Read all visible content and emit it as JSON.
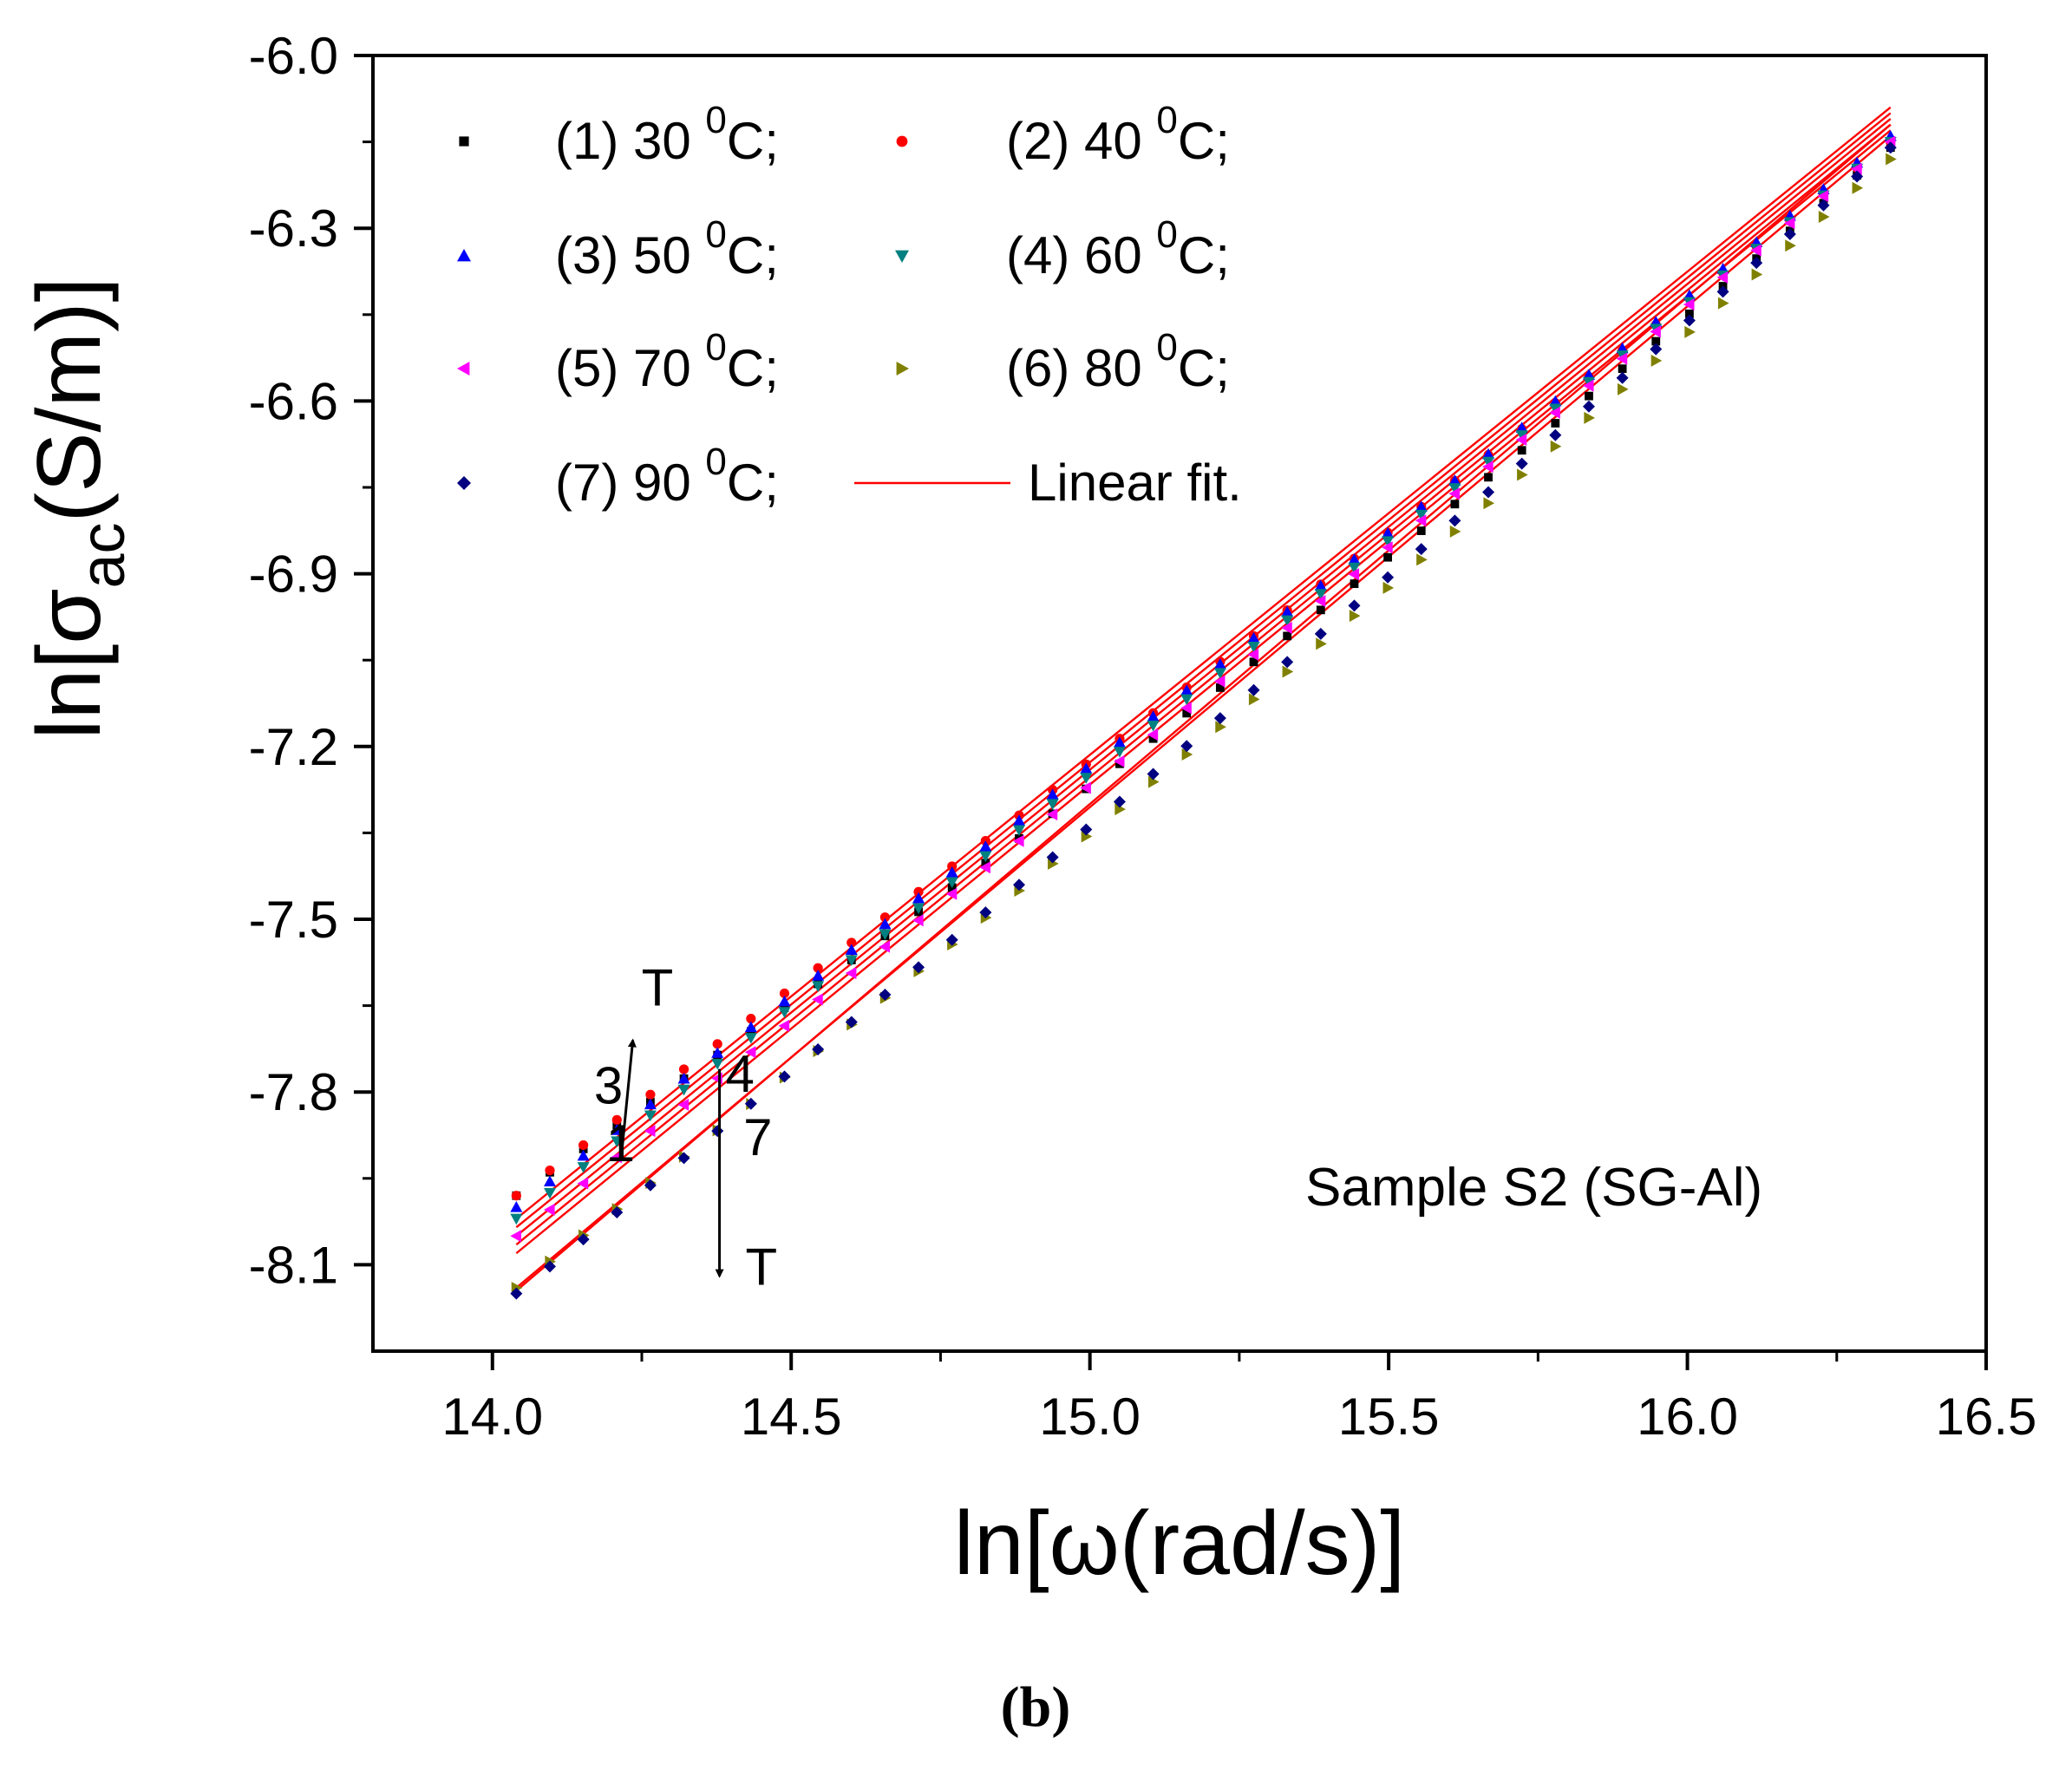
{
  "chart_data": {
    "type": "scatter",
    "panel_label": "(b)",
    "xlabel": "ln[ω(rad/s)]",
    "ylabel": {
      "prefix": "ln[σ",
      "subscript": "ac",
      "suffix": "(S/m)]"
    },
    "xlim": [
      13.8,
      16.5
    ],
    "ylim": [
      -8.25,
      -6.0
    ],
    "x_ticks": [
      "14.0",
      "14.5",
      "15.0",
      "15.5",
      "16.0",
      "16.5"
    ],
    "y_ticks": [
      "-6.0",
      "-6.3",
      "-6.6",
      "-6.9",
      "-7.2",
      "-7.5",
      "-7.8",
      "-8.1"
    ],
    "x_tick_values": [
      14.0,
      14.5,
      15.0,
      15.5,
      16.0,
      16.5
    ],
    "y_tick_values": [
      -6.0,
      -6.3,
      -6.6,
      -6.9,
      -7.2,
      -7.5,
      -7.8,
      -8.1
    ],
    "x_range": [
      14.04,
      16.34
    ],
    "n_points": 42,
    "series": [
      {
        "name": "(1) 30",
        "label": "(1) 30",
        "sup": "0",
        "unit": "C;",
        "marker": "square",
        "color": "#000000",
        "start": -7.98,
        "end": -6.16
      },
      {
        "name": "(2) 40",
        "label": "(2) 40",
        "sup": "0",
        "unit": "C;",
        "marker": "circle",
        "color": "#ff0000",
        "start": -7.98,
        "end": -6.15
      },
      {
        "name": "(3) 50",
        "label": "(3) 50",
        "sup": "0",
        "unit": "C;",
        "marker": "triangle-up",
        "color": "#0000ff",
        "start": -8.0,
        "end": -6.14
      },
      {
        "name": "(4) 60",
        "label": "(4) 60",
        "sup": "0",
        "unit": "C;",
        "marker": "triangle-down",
        "color": "#008080",
        "start": -8.02,
        "end": -6.15
      },
      {
        "name": "(5) 70",
        "label": "(5) 70",
        "sup": "0",
        "unit": "C;",
        "marker": "triangle-left",
        "color": "#ff00ff",
        "start": -8.05,
        "end": -6.15
      },
      {
        "name": "(6) 80",
        "label": "(6) 80",
        "sup": "0",
        "unit": "C;",
        "marker": "triangle-right",
        "color": "#808000",
        "start": -8.14,
        "end": -6.18
      },
      {
        "name": "(7) 90",
        "label": "(7) 90",
        "sup": "0",
        "unit": "C;",
        "marker": "diamond",
        "color": "#000080",
        "start": -8.15,
        "end": -6.16
      }
    ],
    "fit_lines": [
      {
        "name": "fit-2",
        "x": [
          14.04,
          16.34
        ],
        "y": [
          -8.02,
          -6.09
        ]
      },
      {
        "name": "fit-3",
        "x": [
          14.04,
          16.34
        ],
        "y": [
          -8.035,
          -6.1
        ]
      },
      {
        "name": "fit-1",
        "x": [
          14.04,
          16.34
        ],
        "y": [
          -8.05,
          -6.11
        ]
      },
      {
        "name": "fit-4",
        "x": [
          14.04,
          16.34
        ],
        "y": [
          -8.065,
          -6.12
        ]
      },
      {
        "name": "fit-5",
        "x": [
          14.04,
          16.34
        ],
        "y": [
          -8.08,
          -6.13
        ]
      },
      {
        "name": "fit-7",
        "x": [
          14.04,
          16.34
        ],
        "y": [
          -8.145,
          -6.12
        ]
      },
      {
        "name": "fit-6",
        "x": [
          14.04,
          16.34
        ],
        "y": [
          -8.14,
          -6.14
        ]
      }
    ],
    "fit_color": "#ff0000",
    "legend": {
      "position": "top-left",
      "fit_label": "Linear fit."
    },
    "annotations": {
      "arrow_up_label": "T",
      "arrow_up_from": [
        14.215,
        -7.92
      ],
      "arrow_up_to": [
        14.235,
        -7.71
      ],
      "arrow_down_label": "T",
      "arrow_down_from": [
        14.38,
        -7.76
      ],
      "arrow_down_to": [
        14.38,
        -8.12
      ],
      "curve_labels": [
        {
          "text": "3",
          "x": 14.17,
          "y": -7.82
        },
        {
          "text": "1",
          "x": 14.19,
          "y": -7.92
        },
        {
          "text": "4",
          "x": 14.39,
          "y": -7.8
        },
        {
          "text": "7",
          "x": 14.42,
          "y": -7.91
        }
      ],
      "sample_label": "Sample S2 (SG-Al)"
    }
  }
}
